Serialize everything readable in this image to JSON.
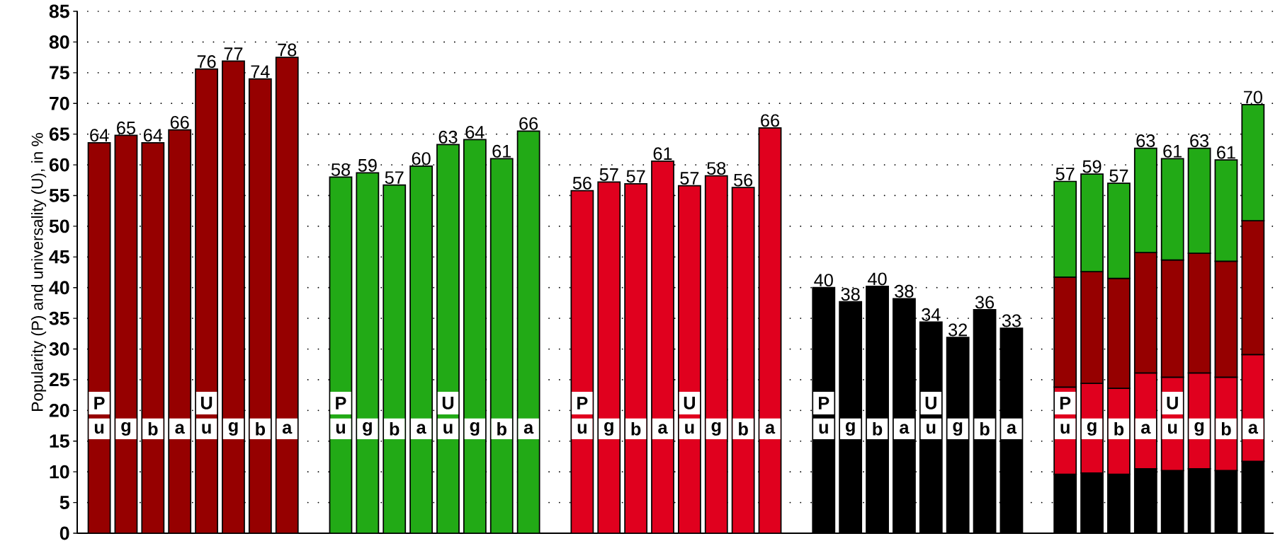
{
  "chart_data": {
    "type": "bar",
    "stacked": true,
    "ylabel": "Popularity (P) and universality (U), in %",
    "categories": [
      "u",
      "g",
      "b",
      "a",
      "u",
      "g",
      "b",
      "a",
      null,
      "u",
      "g",
      "b",
      "a",
      "u",
      "g",
      "b",
      "a",
      null,
      "u",
      "g",
      "b",
      "a",
      "u",
      "g",
      "b",
      "a",
      null,
      "u",
      "g",
      "b",
      "a",
      "u",
      "g",
      "b",
      "a",
      null,
      "u",
      "g",
      "b",
      "a",
      "u",
      "g",
      "b",
      "a"
    ],
    "series": [
      {
        "color": "#000000",
        "values": [
          null,
          null,
          null,
          null,
          null,
          null,
          null,
          null,
          null,
          null,
          null,
          null,
          null,
          null,
          null,
          null,
          null,
          null,
          null,
          null,
          null,
          null,
          null,
          null,
          null,
          null,
          null,
          40.0,
          37.7,
          40.2,
          38.2,
          34.4,
          31.9,
          36.4,
          33.4,
          null,
          9.6,
          9.8,
          9.6,
          10.5,
          10.2,
          10.5,
          10.2,
          11.7
        ],
        "value_labels": [
          null,
          null,
          null,
          null,
          null,
          null,
          null,
          null,
          null,
          null,
          null,
          null,
          null,
          null,
          null,
          null,
          null,
          null,
          null,
          null,
          null,
          null,
          null,
          null,
          null,
          null,
          null,
          "40",
          "38",
          "40",
          "38",
          "34",
          "32",
          "36",
          "33",
          null,
          null,
          null,
          null,
          null,
          null,
          null,
          null,
          null
        ]
      },
      {
        "color": "#e0001e",
        "values": [
          null,
          null,
          null,
          null,
          null,
          null,
          null,
          null,
          null,
          null,
          null,
          null,
          null,
          null,
          null,
          null,
          null,
          null,
          55.8,
          57.2,
          56.9,
          60.6,
          56.6,
          58.2,
          56.3,
          66.0,
          null,
          null,
          null,
          null,
          null,
          null,
          null,
          null,
          null,
          null,
          14.2,
          14.6,
          14.0,
          15.6,
          15.2,
          15.6,
          15.2,
          17.4
        ],
        "value_labels": [
          null,
          null,
          null,
          null,
          null,
          null,
          null,
          null,
          null,
          null,
          null,
          null,
          null,
          null,
          null,
          null,
          null,
          null,
          "56",
          "57",
          "57",
          "61",
          "57",
          "58",
          "56",
          "66",
          null,
          null,
          null,
          null,
          null,
          null,
          null,
          null,
          null,
          null,
          null,
          null,
          null,
          null,
          null,
          null,
          null,
          null
        ]
      },
      {
        "color": "#960000",
        "values": [
          63.6,
          64.8,
          63.6,
          65.7,
          75.6,
          76.9,
          74.0,
          77.5,
          null,
          null,
          null,
          null,
          null,
          null,
          null,
          null,
          null,
          null,
          null,
          null,
          null,
          null,
          null,
          null,
          null,
          null,
          null,
          null,
          null,
          null,
          null,
          null,
          null,
          null,
          null,
          null,
          17.9,
          18.2,
          17.9,
          19.6,
          19.1,
          19.5,
          18.9,
          21.8
        ],
        "value_labels": [
          "64",
          "65",
          "64",
          "66",
          "76",
          "77",
          "74",
          "78",
          null,
          null,
          null,
          null,
          null,
          null,
          null,
          null,
          null,
          null,
          null,
          null,
          null,
          null,
          null,
          null,
          null,
          null,
          null,
          null,
          null,
          null,
          null,
          null,
          null,
          null,
          null,
          null,
          null,
          null,
          null,
          null,
          null,
          null,
          null,
          null
        ]
      },
      {
        "color": "#22aa16",
        "values": [
          null,
          null,
          null,
          null,
          null,
          null,
          null,
          null,
          null,
          58.0,
          58.7,
          56.7,
          59.8,
          63.3,
          64.1,
          61.0,
          65.5,
          null,
          null,
          null,
          null,
          null,
          null,
          null,
          null,
          null,
          null,
          null,
          null,
          null,
          null,
          null,
          null,
          null,
          null,
          null,
          15.6,
          15.9,
          15.5,
          17.0,
          16.5,
          17.1,
          16.5,
          18.9
        ],
        "value_labels": [
          null,
          null,
          null,
          null,
          null,
          null,
          null,
          null,
          null,
          "58",
          "59",
          "57",
          "60",
          "63",
          "64",
          "61",
          "66",
          null,
          null,
          null,
          null,
          null,
          null,
          null,
          null,
          null,
          null,
          null,
          null,
          null,
          null,
          null,
          null,
          null,
          null,
          null,
          null,
          null,
          null,
          null,
          null,
          null,
          null,
          null
        ]
      }
    ],
    "totals": [
      null,
      null,
      null,
      null,
      null,
      null,
      null,
      null,
      null,
      null,
      null,
      null,
      null,
      null,
      null,
      null,
      null,
      null,
      null,
      null,
      null,
      null,
      null,
      null,
      null,
      null,
      null,
      null,
      null,
      null,
      null,
      null,
      null,
      null,
      null,
      null,
      "57",
      "59",
      "57",
      "63",
      "61",
      "63",
      "61",
      "70"
    ],
    "annotations": [
      "P",
      "U",
      "P",
      "U",
      "P",
      "U",
      "P",
      "U",
      "P",
      "U"
    ],
    "ylim": [
      0,
      85
    ],
    "yticks": [
      0,
      5,
      10,
      15,
      20,
      25,
      30,
      35,
      40,
      45,
      50,
      55,
      60,
      65,
      70,
      75,
      80,
      85
    ],
    "grid": "y"
  }
}
